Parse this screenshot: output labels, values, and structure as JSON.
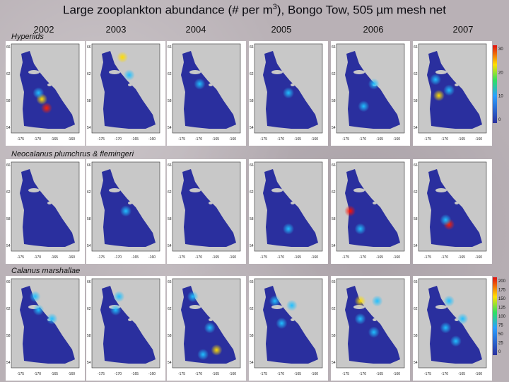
{
  "title": "Large zooplankton abundance (# per m",
  "title_sup": "3",
  "title_tail": "), Bongo Tow, 505 µm mesh net",
  "years": [
    "2002",
    "2003",
    "2004",
    "2005",
    "2006",
    "2007"
  ],
  "rows": [
    {
      "label": "Hyperiids",
      "colorbar_ticks": [
        "30",
        "20",
        "10",
        "0"
      ]
    },
    {
      "label": "Neocalanus plumchrus & flemingeri",
      "colorbar_ticks": []
    },
    {
      "label": "Calanus marshallae",
      "colorbar_ticks": [
        "200",
        "175",
        "150",
        "125",
        "100",
        "75",
        "50",
        "25",
        "0"
      ]
    }
  ],
  "map_axes": {
    "lon_ticks": [
      "-175",
      "-170",
      "-165",
      "-160"
    ],
    "lat_ticks": [
      "66",
      "62",
      "58",
      "54"
    ]
  },
  "colors": {
    "ocean": "#2a2f9e",
    "land": "#c8c8c8",
    "background": "#b9b1b6"
  },
  "hotspots": [
    [
      [
        0.52,
        0.72,
        "#ff2000"
      ],
      [
        0.45,
        0.62,
        "#ffdd00"
      ],
      [
        0.4,
        0.55,
        "#20c0ff"
      ]
    ],
    [
      [
        0.45,
        0.15,
        "#ffdd00"
      ],
      [
        0.55,
        0.35,
        "#20c0ff"
      ]
    ],
    [
      [
        0.4,
        0.45,
        "#20c0ff"
      ]
    ],
    [
      [
        0.5,
        0.55,
        "#20c0ff"
      ]
    ],
    [
      [
        0.4,
        0.7,
        "#20c0ff"
      ],
      [
        0.55,
        0.45,
        "#20c0ff"
      ]
    ],
    [
      [
        0.3,
        0.58,
        "#ffdd00"
      ],
      [
        0.45,
        0.52,
        "#20c0ff"
      ],
      [
        0.25,
        0.4,
        "#20c0ff"
      ]
    ],
    [],
    [
      [
        0.5,
        0.55,
        "#20c0ff"
      ]
    ],
    [],
    [
      [
        0.5,
        0.75,
        "#20c0ff"
      ]
    ],
    [
      [
        0.2,
        0.55,
        "#ff1000"
      ],
      [
        0.35,
        0.75,
        "#20c0ff"
      ]
    ],
    [
      [
        0.45,
        0.7,
        "#ff2000"
      ],
      [
        0.4,
        0.65,
        "#20c0ff"
      ]
    ],
    [
      [
        0.35,
        0.2,
        "#20c0ff"
      ],
      [
        0.4,
        0.35,
        "#20c0ff"
      ],
      [
        0.6,
        0.45,
        "#20c0ff"
      ]
    ],
    [
      [
        0.4,
        0.2,
        "#20c0ff"
      ],
      [
        0.35,
        0.35,
        "#20c0ff"
      ]
    ],
    [
      [
        0.3,
        0.2,
        "#20c0ff"
      ],
      [
        0.55,
        0.55,
        "#20c0ff"
      ],
      [
        0.65,
        0.8,
        "#ffdd00"
      ],
      [
        0.45,
        0.85,
        "#20c0ff"
      ]
    ],
    [
      [
        0.3,
        0.25,
        "#20c0ff"
      ],
      [
        0.55,
        0.3,
        "#20c0ff"
      ],
      [
        0.4,
        0.5,
        "#20c0ff"
      ]
    ],
    [
      [
        0.35,
        0.25,
        "#ffdd00"
      ],
      [
        0.35,
        0.45,
        "#20c0ff"
      ],
      [
        0.55,
        0.6,
        "#20c0ff"
      ],
      [
        0.6,
        0.25,
        "#20c0ff"
      ]
    ],
    [
      [
        0.45,
        0.25,
        "#20c0ff"
      ],
      [
        0.4,
        0.55,
        "#20c0ff"
      ],
      [
        0.55,
        0.7,
        "#20c0ff"
      ],
      [
        0.65,
        0.45,
        "#20c0ff"
      ]
    ]
  ]
}
